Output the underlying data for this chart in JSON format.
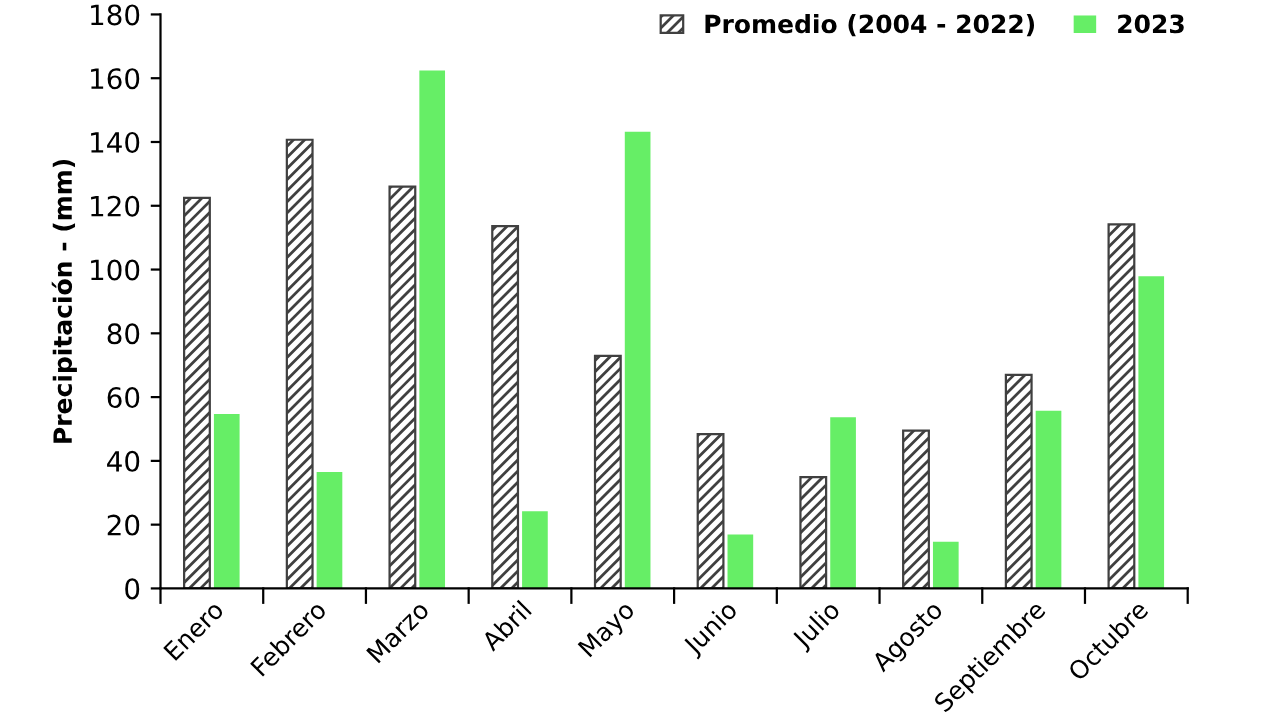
{
  "chart_data": {
    "type": "bar",
    "ylabel": "Precipitación - (mm)",
    "categories": [
      "Enero",
      "Febrero",
      "Marzo",
      "Abril",
      "Mayo",
      "Junio",
      "Julio",
      "Agosto",
      "Septiembre",
      "Octubre"
    ],
    "series": [
      {
        "name": "Promedio (2004 - 2022)",
        "color": "#404040",
        "values": [
          122.5,
          140.7,
          126,
          113.6,
          72.9,
          48.4,
          34.9,
          49.5,
          67,
          114.2
        ]
      },
      {
        "name": "2023",
        "color": "#66ee66",
        "values": [
          54.7,
          36.5,
          162.4,
          24.2,
          143.2,
          16.9,
          53.7,
          14.6,
          55.7,
          97.9
        ]
      }
    ],
    "ylim": [
      0,
      180
    ],
    "yticks": [
      0,
      20,
      40,
      60,
      80,
      100,
      120,
      140,
      160,
      180
    ],
    "grid": false,
    "legend": "top right"
  }
}
